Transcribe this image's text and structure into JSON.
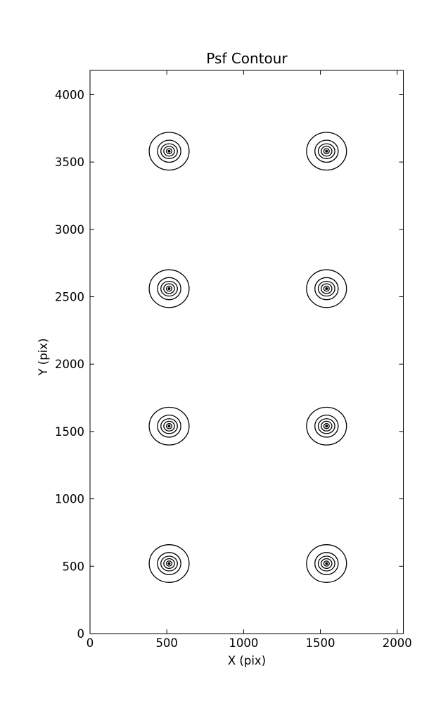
{
  "figure": {
    "title": "Psf Contour",
    "xlabel": "X (pix)",
    "ylabel": "Y (pix)"
  },
  "chart_data": {
    "type": "contour",
    "title": "Psf Contour",
    "xlabel": "X (pix)",
    "ylabel": "Y (pix)",
    "xlim": [
      0,
      2040
    ],
    "ylim": [
      0,
      4180
    ],
    "xticks": [
      0,
      500,
      1000,
      1500,
      2000
    ],
    "yticks": [
      0,
      500,
      1000,
      1500,
      2000,
      2500,
      3000,
      3500,
      4000
    ],
    "grid": false,
    "legend": false,
    "background": "#ffffff",
    "line_color": "#000000",
    "axis_color": "#000000",
    "psf_centers": [
      {
        "x": 515,
        "y": 3580
      },
      {
        "x": 1540,
        "y": 3580
      },
      {
        "x": 515,
        "y": 2560
      },
      {
        "x": 1540,
        "y": 2560
      },
      {
        "x": 515,
        "y": 1540
      },
      {
        "x": 1540,
        "y": 1540
      },
      {
        "x": 515,
        "y": 520
      },
      {
        "x": 1540,
        "y": 520
      }
    ],
    "ring_radii_x": [
      130,
      76,
      54,
      35,
      18,
      6
    ],
    "ring_radii_y": [
      140,
      82,
      55,
      36,
      19,
      7
    ],
    "innermost_is_dot": true
  }
}
